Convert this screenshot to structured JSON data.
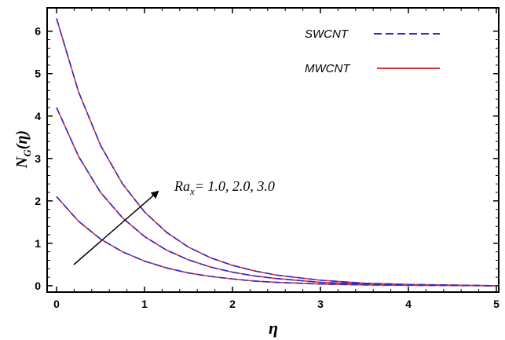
{
  "chart_data": {
    "type": "line",
    "xlabel": "η",
    "ylabel_main": "N",
    "ylabel_sub": "G",
    "ylabel_arg": "(η)",
    "xlim": [
      0,
      5
    ],
    "ylim": [
      -0.15,
      6.55
    ],
    "x_ticks": [
      0,
      1,
      2,
      3,
      4,
      5
    ],
    "y_ticks": [
      0,
      1,
      2,
      3,
      4,
      5,
      6
    ],
    "grid": false,
    "legend_position": "top-right",
    "legend": [
      {
        "label": "SWCNT",
        "color": "#2b2bcf",
        "dash": "dashed"
      },
      {
        "label": "MWCNT",
        "color": "#e0303a",
        "dash": "solid"
      }
    ],
    "annotation": {
      "prefix": "Ra",
      "subscript": "x",
      "suffix": "= 1.0, 2.0, 3.0"
    },
    "series": [
      {
        "param": "Ra_x=1.0",
        "x": [
          0,
          0.25,
          0.5,
          0.75,
          1.0,
          1.25,
          1.5,
          1.75,
          2.0,
          2.25,
          2.5,
          3.0,
          3.5,
          4.0,
          4.5,
          5.0
        ],
        "y": [
          2.1,
          1.52,
          1.1,
          0.8,
          0.58,
          0.42,
          0.3,
          0.22,
          0.16,
          0.11,
          0.08,
          0.04,
          0.02,
          0.01,
          0.005,
          0.0
        ]
      },
      {
        "param": "Ra_x=2.0",
        "x": [
          0,
          0.25,
          0.5,
          0.75,
          1.0,
          1.25,
          1.5,
          1.75,
          2.0,
          2.25,
          2.5,
          3.0,
          3.5,
          4.0,
          4.5,
          5.0
        ],
        "y": [
          4.2,
          3.05,
          2.2,
          1.6,
          1.16,
          0.84,
          0.61,
          0.44,
          0.32,
          0.23,
          0.17,
          0.08,
          0.04,
          0.02,
          0.01,
          0.0
        ]
      },
      {
        "param": "Ra_x=3.0",
        "x": [
          0,
          0.25,
          0.5,
          0.75,
          1.0,
          1.25,
          1.5,
          1.75,
          2.0,
          2.25,
          2.5,
          3.0,
          3.5,
          4.0,
          4.5,
          5.0
        ],
        "y": [
          6.3,
          4.57,
          3.31,
          2.4,
          1.74,
          1.26,
          0.91,
          0.66,
          0.48,
          0.35,
          0.25,
          0.13,
          0.06,
          0.03,
          0.015,
          0.0
        ]
      }
    ]
  }
}
